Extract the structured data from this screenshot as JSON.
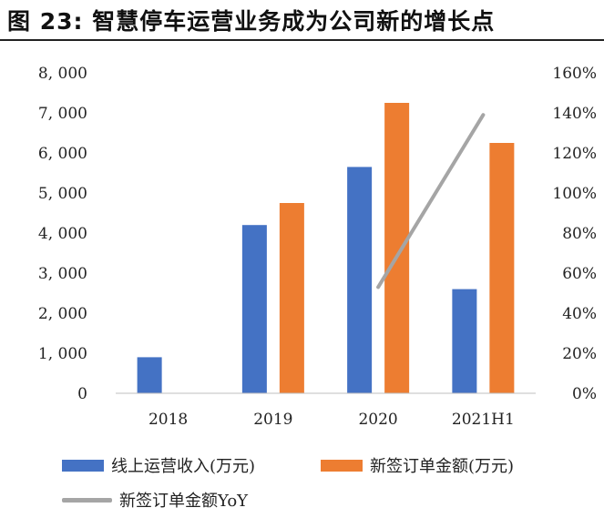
{
  "figure": {
    "title": "图 23:  智慧停车运营业务成为公司新的增长点"
  },
  "colors": {
    "online_revenue": "#4472C4",
    "signed_orders": "#ED7D31",
    "yoy": "#A5A5A5"
  },
  "chart_data": {
    "type": "bar",
    "categories": [
      "2018",
      "2019",
      "2020",
      "2021H1"
    ],
    "series": [
      {
        "name": "线上运营收入(万元)",
        "type": "bar",
        "axis": "left",
        "values": [
          900,
          4200,
          5650,
          2600
        ]
      },
      {
        "name": "新签订单金额(万元)",
        "type": "bar",
        "axis": "left",
        "values": [
          null,
          4750,
          7250,
          6250
        ]
      },
      {
        "name": "新签订单金额YoY",
        "type": "line",
        "axis": "right",
        "values": [
          null,
          null,
          53,
          139
        ]
      }
    ],
    "y_left": {
      "min": 0,
      "max": 8000,
      "ticks": [
        "0",
        "1, 000",
        "2, 000",
        "3, 000",
        "4, 000",
        "5, 000",
        "6, 000",
        "7, 000",
        "8, 000"
      ]
    },
    "y_right": {
      "min": 0,
      "max": 160,
      "ticks": [
        "0%",
        "20%",
        "40%",
        "60%",
        "80%",
        "100%",
        "120%",
        "140%",
        "160%"
      ]
    },
    "grid": false,
    "legend_position": "bottom"
  }
}
